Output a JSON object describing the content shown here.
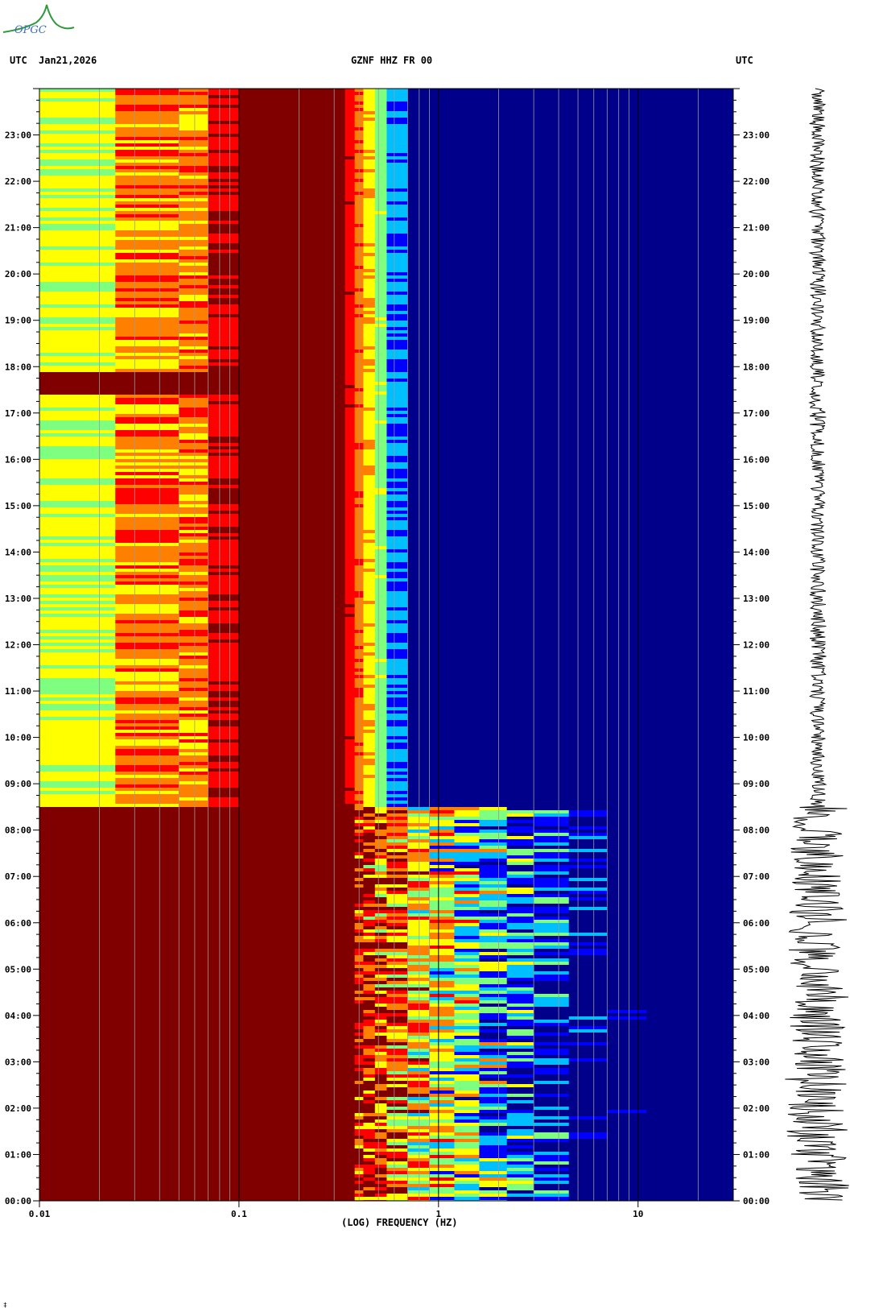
{
  "header": {
    "left_tz": "UTC",
    "date": "Jan21,2026",
    "station": "GZNF HHZ FR 00",
    "right_tz": "UTC"
  },
  "logo": {
    "text": "OPGC",
    "colors": {
      "arc": "#2f9a3a",
      "text": "#3a6fb5"
    }
  },
  "chart_data": {
    "type": "heatmap",
    "title": "GZNF HHZ FR 00",
    "xlabel": "(LOG) FREQUENCY (HZ)",
    "x_scale": "log",
    "x_tick_labels": [
      {
        "value": 0.01,
        "label": "0.01"
      },
      {
        "value": 0.1,
        "label": "0.1"
      },
      {
        "value": 1,
        "label": "1"
      },
      {
        "value": 10,
        "label": "10"
      }
    ],
    "xlim": [
      0.01,
      30
    ],
    "ylim_hours": [
      0,
      24
    ],
    "y_tick_labels": [
      "00:00",
      "01:00",
      "02:00",
      "03:00",
      "04:00",
      "05:00",
      "06:00",
      "07:00",
      "08:00",
      "09:00",
      "10:00",
      "11:00",
      "12:00",
      "13:00",
      "14:00",
      "15:00",
      "16:00",
      "17:00",
      "18:00",
      "19:00",
      "20:00",
      "21:00",
      "22:00",
      "23:00"
    ],
    "colormap": [
      "#00008b",
      "#0000ff",
      "#00bfff",
      "#7fff7f",
      "#ffff00",
      "#ff8000",
      "#ff0000",
      "#800000"
    ],
    "regimes": [
      {
        "from_hour": 0.0,
        "to_hour": 8.5,
        "description": "high amplitude broadband energy"
      },
      {
        "from_hour": 8.5,
        "to_hour": 24.0,
        "description": "low amplitude above 0.5 Hz"
      }
    ],
    "grid": true
  }
}
